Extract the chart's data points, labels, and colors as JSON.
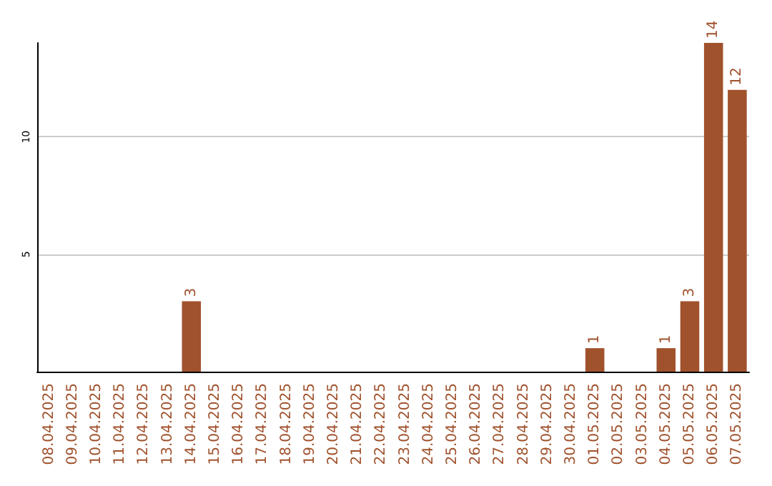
{
  "chart_data": {
    "type": "bar",
    "categories": [
      "08.04.2025",
      "09.04.2025",
      "10.04.2025",
      "11.04.2025",
      "12.04.2025",
      "13.04.2025",
      "14.04.2025",
      "15.04.2025",
      "16.04.2025",
      "17.04.2025",
      "18.04.2025",
      "19.04.2025",
      "20.04.2025",
      "21.04.2025",
      "22.04.2025",
      "23.04.2025",
      "24.04.2025",
      "25.04.2025",
      "26.04.2025",
      "27.04.2025",
      "28.04.2025",
      "29.04.2025",
      "30.04.2025",
      "01.05.2025",
      "02.05.2025",
      "03.05.2025",
      "04.05.2025",
      "05.05.2025",
      "06.05.2025",
      "07.05.2025"
    ],
    "values": [
      0,
      0,
      0,
      0,
      0,
      0,
      3,
      0,
      0,
      0,
      0,
      0,
      0,
      0,
      0,
      0,
      0,
      0,
      0,
      0,
      0,
      0,
      0,
      1,
      0,
      0,
      1,
      3,
      14,
      12
    ],
    "value_labels": [
      null,
      null,
      null,
      null,
      null,
      null,
      "3",
      null,
      null,
      null,
      null,
      null,
      null,
      null,
      null,
      null,
      null,
      null,
      null,
      null,
      null,
      null,
      null,
      "1",
      null,
      null,
      "1",
      "3",
      "14",
      "12"
    ],
    "color": "#a0522d",
    "ylim": [
      0,
      14
    ],
    "yticks": [
      5,
      10
    ],
    "grid": "y"
  }
}
